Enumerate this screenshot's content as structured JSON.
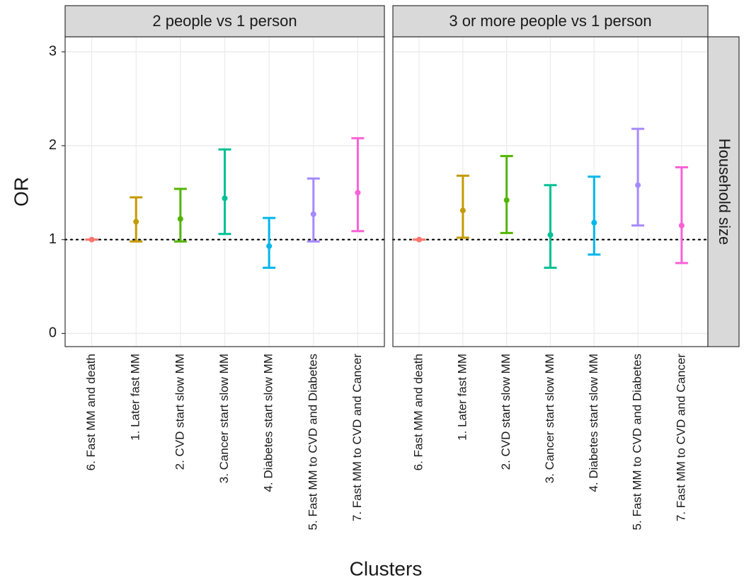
{
  "chart_data": [
    {
      "type": "errorbar",
      "title": "2 people vs 1 person",
      "y_label": "OR",
      "categories": [
        "6. Fast MM and death",
        "1. Later fast MM",
        "2. CVD start slow MM",
        "3. Cancer start slow MM",
        "4. Diabetes start slow MM",
        "5. Fast MM to CVD and Diabetes",
        "7. Fast MM to CVD and Cancer"
      ],
      "colors": [
        "#F8766D",
        "#C49A00",
        "#53B400",
        "#00C094",
        "#00B6EB",
        "#A58AFF",
        "#FB61D7"
      ],
      "values": [
        1,
        1.19,
        1.22,
        1.44,
        0.93,
        1.27,
        1.5
      ],
      "lower": [
        1,
        0.98,
        0.98,
        1.06,
        0.7,
        0.98,
        1.09
      ],
      "upper": [
        1,
        1.45,
        1.54,
        1.96,
        1.23,
        1.65,
        2.08
      ],
      "reference_line": 1,
      "ylim": [
        -0.14,
        3.16
      ],
      "yticks": [
        0,
        1,
        2,
        3
      ],
      "grid": true
    },
    {
      "type": "errorbar",
      "title": "3 or more people vs 1 person",
      "row_label": "Household size",
      "categories": [
        "6. Fast MM and death",
        "1. Later fast MM",
        "2. CVD start slow MM",
        "3. Cancer start slow MM",
        "4. Diabetes start slow MM",
        "5. Fast MM to CVD and Diabetes",
        "7. Fast MM to CVD and Cancer"
      ],
      "colors": [
        "#F8766D",
        "#C49A00",
        "#53B400",
        "#00C094",
        "#00B6EB",
        "#A58AFF",
        "#FB61D7"
      ],
      "values": [
        1,
        1.31,
        1.42,
        1.05,
        1.18,
        1.58,
        1.15
      ],
      "lower": [
        1,
        1.02,
        1.07,
        0.7,
        0.84,
        1.15,
        0.75
      ],
      "upper": [
        1,
        1.68,
        1.89,
        1.58,
        1.67,
        2.18,
        1.77
      ],
      "reference_line": 1,
      "ylim": [
        -0.14,
        3.16
      ],
      "yticks": [
        0,
        1,
        2,
        3
      ],
      "grid": true
    }
  ],
  "x_label": "Clusters"
}
